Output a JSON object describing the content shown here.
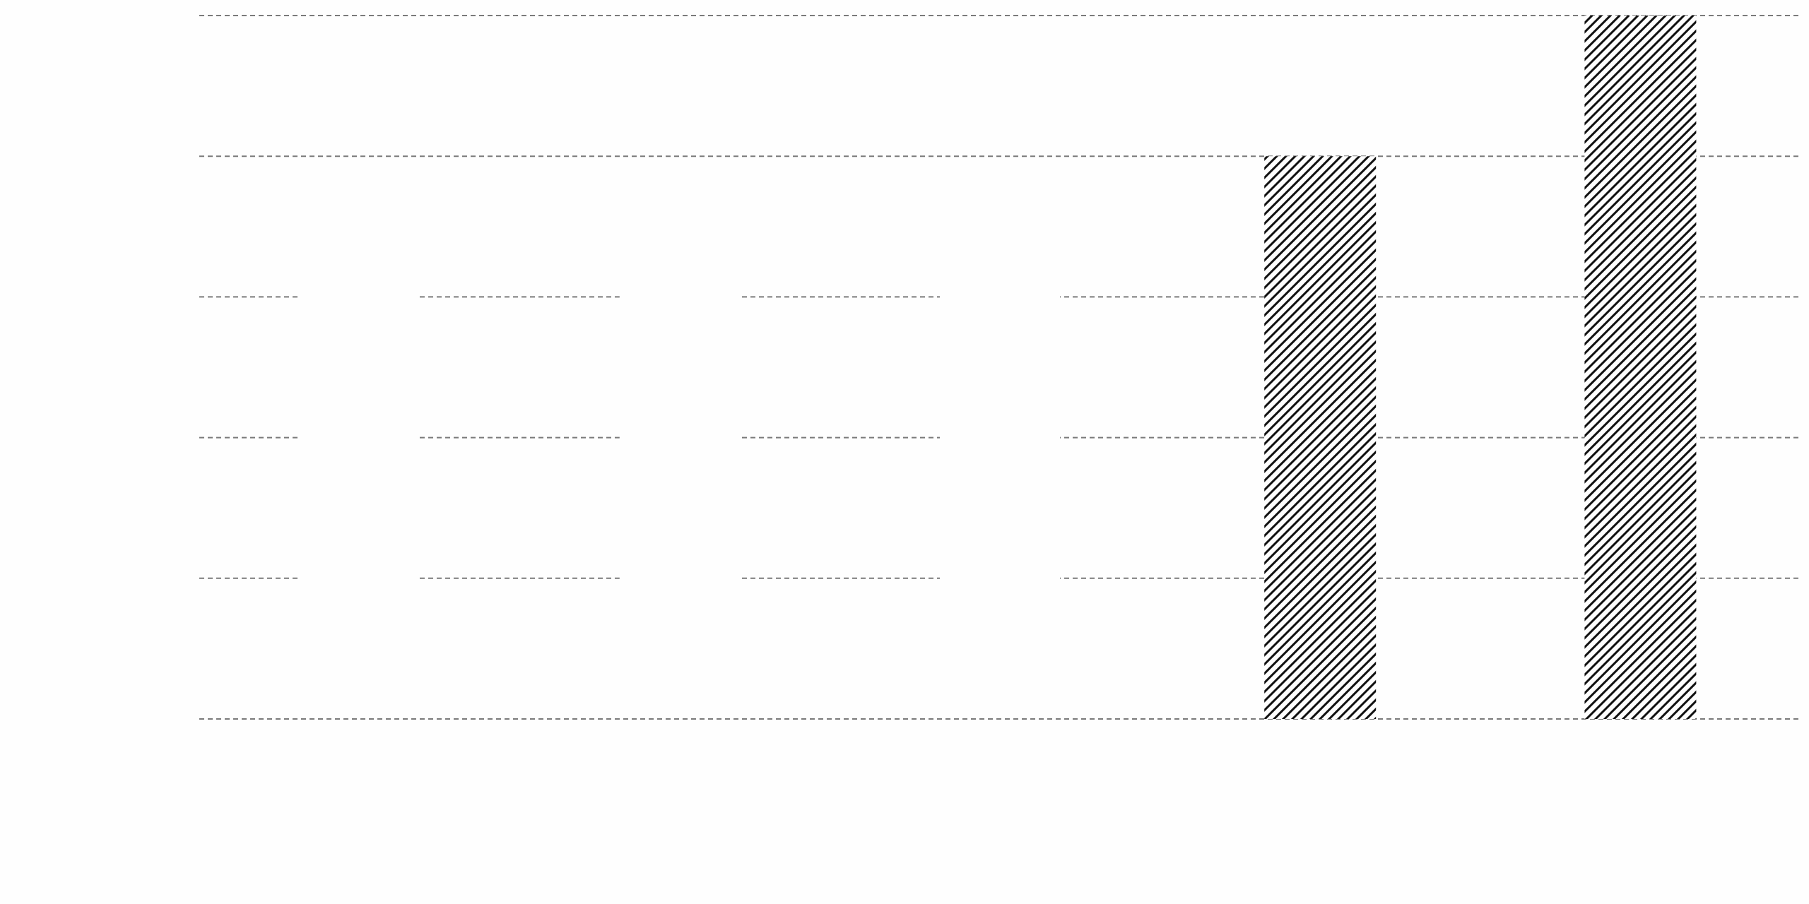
{
  "chart_data": {
    "type": "bar",
    "title": "",
    "xlabel": "",
    "ylabel": "",
    "categories": [
      "",
      "",
      "",
      "",
      ""
    ],
    "values": [
      0.0,
      0.0,
      0.0,
      4.0,
      5.0
    ],
    "ylim": [
      0,
      5
    ],
    "yticks": [
      0,
      1,
      2,
      3,
      4,
      5
    ],
    "grid": true,
    "grid_style": "dashed",
    "bar_fill": "diagonal-hatch",
    "colors": {
      "background": "#fefefe",
      "grid": "#7a7a7a",
      "bar_stroke": "#111111",
      "hatch": "#111111"
    }
  }
}
